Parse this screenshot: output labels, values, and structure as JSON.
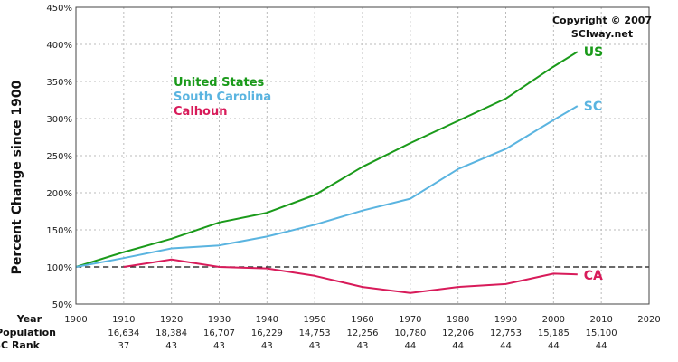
{
  "chart_data": {
    "type": "line",
    "ylabel": "Percent Change since 1900",
    "ylim": [
      50,
      450
    ],
    "yticks": [
      50,
      100,
      150,
      200,
      250,
      300,
      350,
      400,
      450
    ],
    "xlim": [
      1900,
      2020
    ],
    "x_ticks": [
      "1900",
      "1910",
      "1920",
      "1930",
      "1940",
      "1950",
      "1960",
      "1970",
      "1980",
      "1990",
      "2000",
      "2010",
      "2020"
    ],
    "row_labels": {
      "year": "Year",
      "population": "Population",
      "rank": "SC Rank"
    },
    "population": [
      "16,634",
      "18,384",
      "16,707",
      "16,229",
      "14,753",
      "12,256",
      "10,780",
      "12,206",
      "12,753",
      "15,185",
      "15,100"
    ],
    "sc_rank": [
      "37",
      "43",
      "43",
      "43",
      "43",
      "43",
      "44",
      "44",
      "44",
      "44",
      "44"
    ],
    "baseline": 100,
    "grid": true,
    "copyright": [
      "Copyright © 2007",
      "SCIway.net"
    ],
    "series": [
      {
        "name": "United States",
        "end_label": "US",
        "color": "#1a9a1a",
        "x": [
          1900,
          1910,
          1920,
          1930,
          1940,
          1950,
          1960,
          1970,
          1980,
          1990,
          2000,
          2005
        ],
        "values": [
          100,
          120,
          138,
          160,
          173,
          197,
          235,
          267,
          297,
          327,
          370,
          390
        ]
      },
      {
        "name": "South Carolina",
        "end_label": "SC",
        "color": "#5ab4e0",
        "x": [
          1900,
          1910,
          1920,
          1930,
          1940,
          1950,
          1960,
          1970,
          1980,
          1990,
          2000,
          2005
        ],
        "values": [
          100,
          112,
          125,
          129,
          141,
          157,
          176,
          192,
          232,
          259,
          298,
          317
        ]
      },
      {
        "name": "Calhoun",
        "end_label": "CA",
        "color": "#d81b5a",
        "x": [
          1910,
          1920,
          1930,
          1940,
          1950,
          1960,
          1970,
          1980,
          1990,
          2000,
          2005
        ],
        "values": [
          100,
          110,
          100,
          98,
          88,
          73,
          65,
          73,
          77,
          91,
          90
        ]
      }
    ]
  }
}
